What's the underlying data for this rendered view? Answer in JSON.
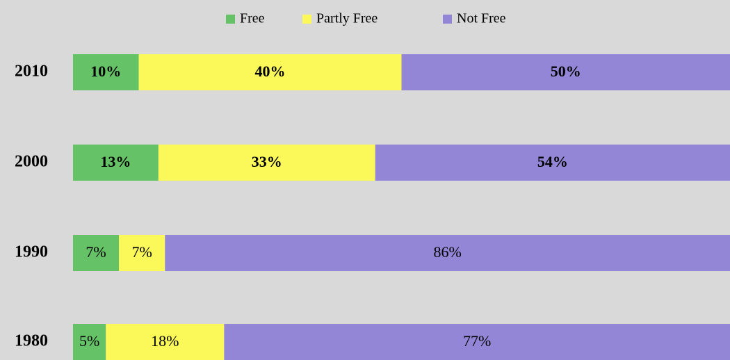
{
  "chart_data": {
    "type": "stacked_bar_horizontal",
    "categories": [
      "2010",
      "2000",
      "1990",
      "1980"
    ],
    "series": [
      {
        "name": "Free",
        "color": "#66c266",
        "values": [
          10,
          13,
          7,
          5
        ],
        "value_labels": [
          "10%",
          "13%",
          "7%",
          "5%"
        ]
      },
      {
        "name": "Partly Free",
        "color": "#fbf85a",
        "values": [
          40,
          33,
          7,
          18
        ],
        "value_labels": [
          "40%",
          "33%",
          "7%",
          "18%"
        ]
      },
      {
        "name": "Not Free",
        "color": "#9486d6",
        "values": [
          50,
          54,
          86,
          77
        ],
        "value_labels": [
          "50%",
          "54%",
          "86%",
          "77%"
        ]
      }
    ],
    "legend": "top"
  }
}
